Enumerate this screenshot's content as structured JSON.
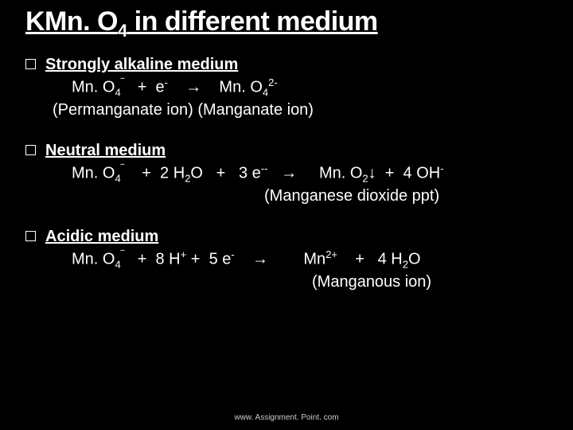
{
  "colors": {
    "background": "#000000",
    "text": "#ffffff",
    "footer": "#cccccc"
  },
  "title": {
    "prefix": "KMn. O",
    "sub": "4",
    "suffix": " in different medium",
    "fontsize": 34
  },
  "sections": [
    {
      "heading": "Strongly alkaline medium",
      "eq_line": "Mn. O4‾   +  e-    →    Mn. O42-",
      "label_line": "(Permanganate ion)        (Manganate ion)"
    },
    {
      "heading": "Neutral medium",
      "eq_line": "Mn. O4‾    +  2 H2O   +   3 e--   →     Mn. O2↓  +  4 OH-",
      "label_line": "(Manganese dioxide ppt)"
    },
    {
      "heading": "Acidic medium",
      "eq_line": "Mn. O4‾   +  8 H+ +  5 e-    →        Mn2+    +   4 H2O",
      "label_line": "(Manganous ion)"
    }
  ],
  "footer": "www. Assignment. Point. com",
  "typography": {
    "body_fontsize": 20,
    "footer_fontsize": 10,
    "font_family": "Arial"
  }
}
